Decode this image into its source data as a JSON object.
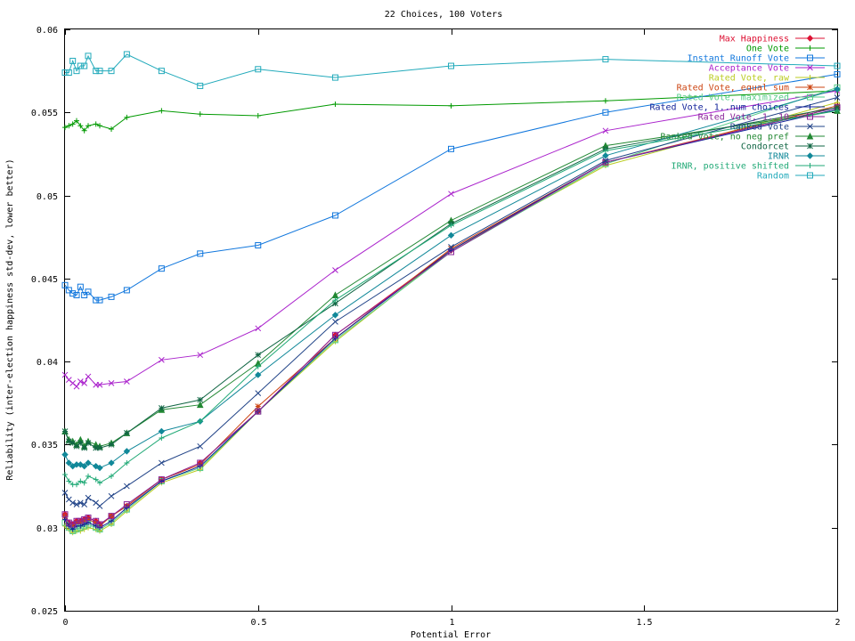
{
  "chart_data": {
    "type": "line",
    "title": "22 Choices, 100 Voters",
    "xlabel": "Potential Error",
    "ylabel": "Reliability (inter-election happiness std-dev, lower better)",
    "xlim": [
      0,
      2
    ],
    "ylim": [
      0.025,
      0.06
    ],
    "xticks": [
      0,
      0.5,
      1,
      1.5,
      2
    ],
    "xtick_labels": [
      "0",
      "0.5",
      "1",
      "1.5",
      "2"
    ],
    "yticks": [
      0.025,
      0.03,
      0.035,
      0.04,
      0.045,
      0.05,
      0.055,
      0.06
    ],
    "ytick_labels": [
      "0.025",
      "0.03",
      "0.035",
      "0.04",
      "0.045",
      "0.05",
      "0.055",
      "0.06"
    ],
    "grid": false,
    "legend_position": "top-right",
    "x": [
      0,
      0.01,
      0.02,
      0.03,
      0.04,
      0.05,
      0.06,
      0.08,
      0.09,
      0.12,
      0.16,
      0.25,
      0.35,
      0.5,
      0.7,
      1.0,
      1.4,
      2.0
    ],
    "series": [
      {
        "name": "Max Happiness",
        "color": "#dd1133",
        "marker": "diamond",
        "values": [
          0.0308,
          0.0303,
          0.0302,
          0.0304,
          0.0304,
          0.0305,
          0.0306,
          0.0304,
          0.0302,
          0.0307,
          0.0313,
          0.0329,
          0.0339,
          0.037,
          0.0416,
          0.0467,
          0.052,
          0.0553
        ]
      },
      {
        "name": "One Vote",
        "color": "#009900",
        "marker": "plus",
        "values": [
          0.0541,
          0.0542,
          0.0543,
          0.0545,
          0.0542,
          0.0539,
          0.0542,
          0.0543,
          0.0542,
          0.054,
          0.0547,
          0.0551,
          0.0549,
          0.0548,
          0.0555,
          0.0554,
          0.0557,
          0.0563
        ]
      },
      {
        "name": "Instant Runoff Vote",
        "color": "#1177dd",
        "marker": "square",
        "values": [
          0.0446,
          0.0443,
          0.0441,
          0.044,
          0.0445,
          0.044,
          0.0442,
          0.0437,
          0.0437,
          0.0439,
          0.0443,
          0.0456,
          0.0465,
          0.047,
          0.0488,
          0.0528,
          0.055,
          0.0573
        ]
      },
      {
        "name": "Acceptance Vote",
        "color": "#aa22cc",
        "marker": "x",
        "values": [
          0.0392,
          0.0389,
          0.0387,
          0.0385,
          0.0388,
          0.0387,
          0.0391,
          0.0386,
          0.0386,
          0.0387,
          0.0388,
          0.0401,
          0.0404,
          0.042,
          0.0455,
          0.0501,
          0.0539,
          0.0563
        ]
      },
      {
        "name": "Rated Vote, raw",
        "color": "#bbcc22",
        "marker": "plus",
        "values": [
          0.0301,
          0.0299,
          0.0297,
          0.0298,
          0.0298,
          0.0299,
          0.03,
          0.0299,
          0.0298,
          0.0302,
          0.031,
          0.0327,
          0.0335,
          0.037,
          0.0412,
          0.0467,
          0.0518,
          0.0556
        ]
      },
      {
        "name": "Rated Vote, equal sum",
        "color": "#cc4411",
        "marker": "star",
        "values": [
          0.0307,
          0.0302,
          0.0301,
          0.0303,
          0.0303,
          0.0304,
          0.0305,
          0.0303,
          0.0301,
          0.0307,
          0.0313,
          0.0329,
          0.0338,
          0.0373,
          0.0414,
          0.0468,
          0.052,
          0.0554
        ]
      },
      {
        "name": "Rated Vote, maximized",
        "color": "#55cc88",
        "marker": "square",
        "values": [
          0.0303,
          0.03,
          0.0298,
          0.0299,
          0.03,
          0.0301,
          0.0302,
          0.03,
          0.0299,
          0.0303,
          0.0311,
          0.0328,
          0.0336,
          0.037,
          0.0413,
          0.0466,
          0.0519,
          0.0565
        ]
      },
      {
        "name": "Rated Vote, 1..num choices",
        "color": "#112299",
        "marker": "plus",
        "values": [
          0.0305,
          0.0301,
          0.0299,
          0.0301,
          0.0301,
          0.0302,
          0.0303,
          0.0301,
          0.03,
          0.0304,
          0.0312,
          0.0328,
          0.0337,
          0.037,
          0.0414,
          0.0467,
          0.052,
          0.0552
        ]
      },
      {
        "name": "Rated Vote, 1..10",
        "color": "#882299",
        "marker": "square",
        "values": [
          0.0308,
          0.0303,
          0.0302,
          0.0304,
          0.0304,
          0.0305,
          0.0306,
          0.0304,
          0.0302,
          0.0307,
          0.0314,
          0.0329,
          0.0339,
          0.037,
          0.0416,
          0.0466,
          0.052,
          0.0553
        ]
      },
      {
        "name": "Ranked Vote",
        "color": "#224488",
        "marker": "x",
        "values": [
          0.0321,
          0.0317,
          0.0315,
          0.0314,
          0.0315,
          0.0314,
          0.0318,
          0.0315,
          0.0313,
          0.0319,
          0.0325,
          0.0339,
          0.0349,
          0.0381,
          0.0424,
          0.0469,
          0.0521,
          0.0559
        ]
      },
      {
        "name": "Ranked Vote, no neg pref",
        "color": "#228833",
        "marker": "triangle",
        "values": [
          0.0358,
          0.0353,
          0.0352,
          0.035,
          0.0353,
          0.0349,
          0.0352,
          0.035,
          0.0349,
          0.0351,
          0.0357,
          0.0371,
          0.0374,
          0.0399,
          0.044,
          0.0485,
          0.053,
          0.0551
        ]
      },
      {
        "name": "Condorcet",
        "color": "#116644",
        "marker": "star",
        "values": [
          0.0358,
          0.0352,
          0.0351,
          0.0349,
          0.0351,
          0.0348,
          0.0351,
          0.0348,
          0.0348,
          0.035,
          0.0357,
          0.0372,
          0.0377,
          0.0404,
          0.0435,
          0.0483,
          0.0528,
          0.0553
        ]
      },
      {
        "name": "IRNR",
        "color": "#118899",
        "marker": "diamond",
        "values": [
          0.0344,
          0.0339,
          0.0337,
          0.0338,
          0.0338,
          0.0337,
          0.0339,
          0.0337,
          0.0336,
          0.0339,
          0.0346,
          0.0358,
          0.0364,
          0.0392,
          0.0428,
          0.0476,
          0.0524,
          0.0564
        ]
      },
      {
        "name": "IRNR, positive shifted",
        "color": "#22aa77",
        "marker": "plus",
        "values": [
          0.0332,
          0.0328,
          0.0326,
          0.0326,
          0.0328,
          0.0327,
          0.0331,
          0.0329,
          0.0327,
          0.0331,
          0.0339,
          0.0354,
          0.0364,
          0.0397,
          0.0437,
          0.0482,
          0.0527,
          0.0551
        ]
      },
      {
        "name": "Random",
        "color": "#22aabb",
        "marker": "square",
        "values": [
          0.0574,
          0.0574,
          0.0581,
          0.0575,
          0.0578,
          0.0578,
          0.0584,
          0.0575,
          0.0575,
          0.0575,
          0.0585,
          0.0575,
          0.0566,
          0.0576,
          0.0571,
          0.0578,
          0.0582,
          0.0578
        ]
      }
    ]
  }
}
